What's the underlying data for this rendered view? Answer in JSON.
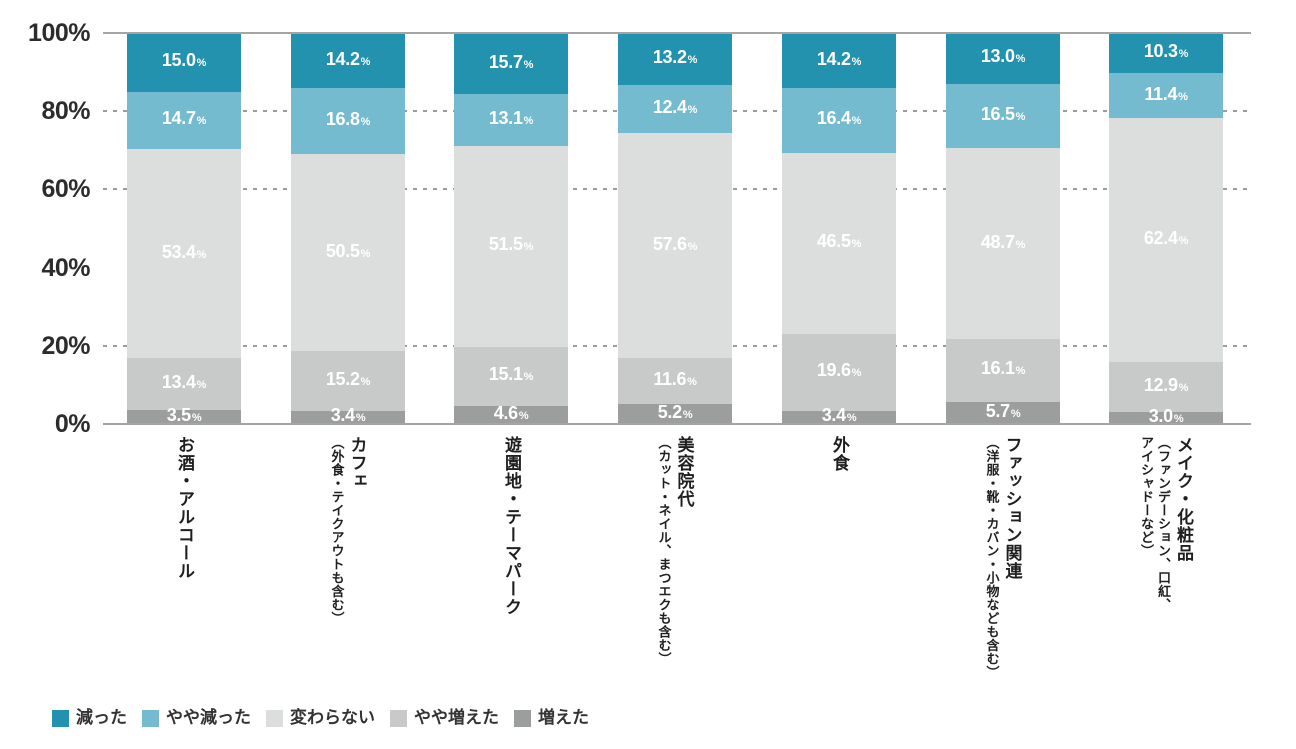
{
  "chart_data": {
    "type": "bar",
    "stacked": true,
    "unit": "%",
    "title": "",
    "categories": [
      {
        "label": "お酒・アルコール",
        "sub": ""
      },
      {
        "label": "カフェ",
        "sub": "（外食・テイクアウトも含む）"
      },
      {
        "label": "遊園地・テーマパーク",
        "sub": ""
      },
      {
        "label": "美容院代",
        "sub": "（カット・ネイル、まつエクも含む）"
      },
      {
        "label": "外食",
        "sub": ""
      },
      {
        "label": "ファッション関連",
        "sub": "（洋服・靴・カバン・小物なども含む）"
      },
      {
        "label": "メイク・化粧品",
        "sub": "（ファンデーション、口紅、\nアイシャドーなど）"
      }
    ],
    "series": [
      {
        "name": "減った",
        "color": "#2292af",
        "values": [
          15.0,
          14.2,
          15.7,
          13.2,
          14.2,
          13.0,
          10.3
        ]
      },
      {
        "name": "やや減った",
        "color": "#74bbd0",
        "values": [
          14.7,
          16.8,
          13.1,
          12.4,
          16.4,
          16.5,
          11.4
        ]
      },
      {
        "name": "変わらない",
        "color": "#dcdddd",
        "values": [
          53.4,
          50.5,
          51.5,
          57.6,
          46.5,
          48.7,
          62.4
        ]
      },
      {
        "name": "やや増えた",
        "color": "#c8c9c9",
        "values": [
          13.4,
          15.2,
          15.1,
          11.6,
          19.6,
          16.1,
          12.9
        ]
      },
      {
        "name": "増えた",
        "color": "#9c9d9d",
        "values": [
          3.5,
          3.4,
          4.6,
          5.2,
          3.4,
          5.7,
          3.0
        ]
      }
    ],
    "y_axis": {
      "min": 0,
      "max": 100,
      "tick_labels": [
        "100%",
        "80%",
        "60%",
        "40%",
        "20%",
        "0%"
      ],
      "tick_values": [
        100,
        80,
        60,
        40,
        20,
        0
      ],
      "dashed_gridlines_at": [
        80,
        60,
        20
      ],
      "solid_lines_at": [
        100,
        0
      ]
    },
    "legend_position": "bottom-left",
    "colors": {
      "axis_line": "#a5a5a5",
      "gridline": "#9b9b9b",
      "y_tick_text": "#2c2c2c",
      "category_text": "#1f1f1f",
      "legend_text": "#333333",
      "value_label_text": "#ffffff",
      "background": "#ffffff"
    }
  }
}
